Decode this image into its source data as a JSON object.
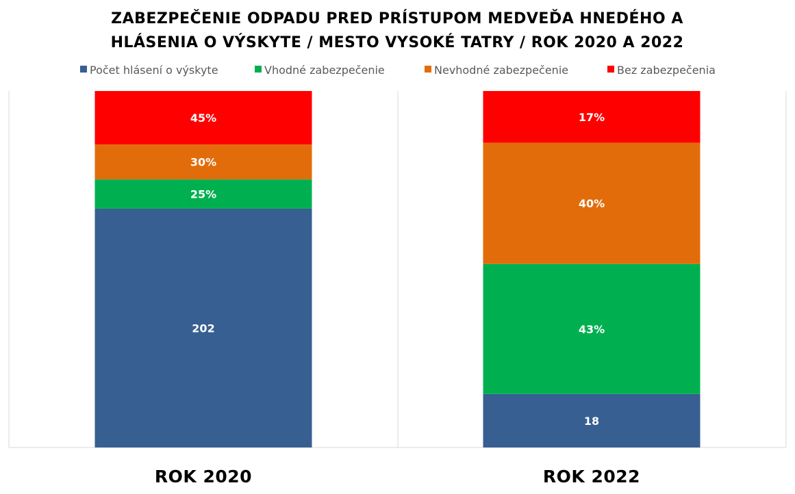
{
  "chart_data": {
    "type": "bar",
    "stacked": true,
    "title": [
      "ZABEZPEČENIE ODPADU PRED PRÍSTUPOM MEDVEĎA HNEDÉHO A",
      "HLÁSENIA O VÝSKYTE / MESTO VYSOKÉ TATRY / ROK 2020 A 2022"
    ],
    "legend_position": "top",
    "categories": [
      "ROK 2020",
      "ROK 2022"
    ],
    "series": [
      {
        "name": "Počet hlásení o výskyte",
        "color": "#375F91",
        "labels": [
          "202",
          "18"
        ],
        "shares": [
          0.67,
          0.15
        ]
      },
      {
        "name": "Vhodné zabezpečenie",
        "color": "#00B050",
        "labels": [
          "25%",
          "43%"
        ],
        "shares": [
          0.082,
          0.365
        ]
      },
      {
        "name": "Nevhodné zabezpečenie",
        "color": "#E36C0A",
        "labels": [
          "30%",
          "40%"
        ],
        "shares": [
          0.098,
          0.34
        ]
      },
      {
        "name": "Bez zabezpečenia",
        "color": "#FF0000",
        "labels": [
          "45%",
          "17%"
        ],
        "shares": [
          0.15,
          0.145
        ]
      }
    ]
  }
}
